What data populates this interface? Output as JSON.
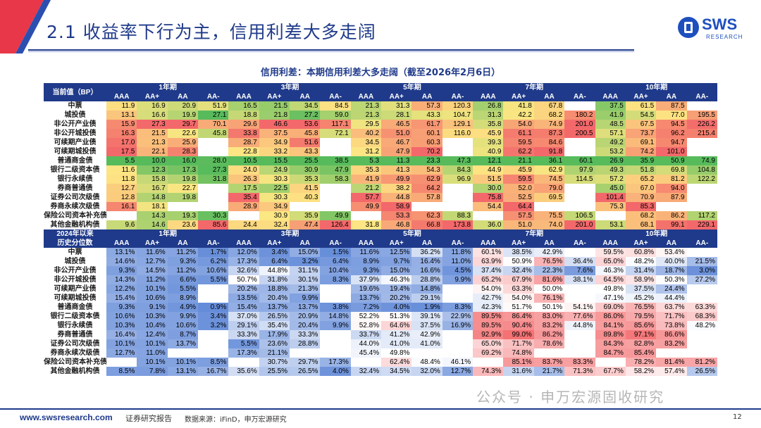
{
  "header": {
    "title": "2.1 收益率下行为主，信用利差大多走阔",
    "logo_text": "SWS",
    "logo_sub": "RESEARCH"
  },
  "subtitle": "信用利差：本期信用利差大多走阔（截至2026年2月6日）",
  "periods": [
    "1年期",
    "3年期",
    "5年期",
    "7年期",
    "10年期"
  ],
  "ratings": [
    "AAA",
    "AA+",
    "AA",
    "AA-"
  ],
  "top": {
    "corner": "当前值（BP）",
    "rows": [
      {
        "name": "中票",
        "v": [
          [
            "11.9",
            "16.9",
            "20.9",
            "51.9"
          ],
          [
            "16.5",
            "21.5",
            "34.5",
            "84.5"
          ],
          [
            "21.3",
            "31.3",
            "57.3",
            "120.3"
          ],
          [
            "26.8",
            "41.8",
            "67.8",
            ""
          ],
          [
            "37.5",
            "61.5",
            "87.5",
            ""
          ]
        ]
      },
      {
        "name": "城投债",
        "v": [
          [
            "13.1",
            "16.6",
            "19.9",
            "27.1"
          ],
          [
            "18.8",
            "21.8",
            "27.2",
            "59.0"
          ],
          [
            "21.3",
            "28.1",
            "43.3",
            "104.7"
          ],
          [
            "31.3",
            "42.2",
            "68.2",
            "180.2"
          ],
          [
            "41.9",
            "54.5",
            "77.0",
            "195.5"
          ]
        ]
      },
      {
        "name": "非公开产业债",
        "v": [
          [
            "15.9",
            "27.3",
            "29.7",
            "70.1"
          ],
          [
            "29.6",
            "46.6",
            "53.6",
            "117.1"
          ],
          [
            "29.5",
            "46.5",
            "61.7",
            "129.1"
          ],
          [
            "35.8",
            "54.0",
            "74.9",
            "201.0"
          ],
          [
            "48.5",
            "67.5",
            "94.5",
            "226.2"
          ]
        ]
      },
      {
        "name": "非公开城投债",
        "v": [
          [
            "16.3",
            "21.5",
            "22.6",
            "45.8"
          ],
          [
            "33.8",
            "37.5",
            "45.8",
            "72.1"
          ],
          [
            "40.2",
            "51.0",
            "60.1",
            "116.0"
          ],
          [
            "45.9",
            "61.1",
            "87.3",
            "200.5"
          ],
          [
            "57.1",
            "73.7",
            "96.2",
            "215.4"
          ]
        ]
      },
      {
        "name": "可续期产业债",
        "v": [
          [
            "17.0",
            "21.3",
            "25.9",
            ""
          ],
          [
            "28.7",
            "34.9",
            "51.6",
            ""
          ],
          [
            "34.5",
            "46.7",
            "60.3",
            ""
          ],
          [
            "39.3",
            "59.5",
            "84.6",
            ""
          ],
          [
            "49.2",
            "69.1",
            "94.7",
            ""
          ]
        ]
      },
      {
        "name": "可续期城投债",
        "v": [
          [
            "17.5",
            "22.1",
            "28.3",
            ""
          ],
          [
            "22.8",
            "33.2",
            "43.3",
            ""
          ],
          [
            "31.2",
            "47.9",
            "70.2",
            ""
          ],
          [
            "40.9",
            "62.2",
            "91.8",
            ""
          ],
          [
            "53.2",
            "74.2",
            "101.0",
            ""
          ]
        ]
      },
      {
        "name": "普通商金债",
        "v": [
          [
            "5.5",
            "10.0",
            "16.0",
            "28.0"
          ],
          [
            "10.5",
            "15.5",
            "25.5",
            "38.5"
          ],
          [
            "5.3",
            "11.3",
            "23.3",
            "47.3"
          ],
          [
            "12.1",
            "21.1",
            "36.1",
            "60.1"
          ],
          [
            "26.9",
            "35.9",
            "50.9",
            "74.9"
          ]
        ]
      },
      {
        "name": "银行二级资本债",
        "v": [
          [
            "11.6",
            "12.3",
            "17.3",
            "27.3"
          ],
          [
            "24.0",
            "24.9",
            "30.9",
            "47.9"
          ],
          [
            "35.3",
            "41.3",
            "54.3",
            "84.3"
          ],
          [
            "44.9",
            "45.9",
            "62.9",
            "97.9"
          ],
          [
            "49.3",
            "51.8",
            "69.8",
            "104.8"
          ]
        ]
      },
      {
        "name": "银行永续债",
        "v": [
          [
            "11.8",
            "15.8",
            "19.8",
            "31.8"
          ],
          [
            "26.3",
            "30.3",
            "35.3",
            "58.3"
          ],
          [
            "41.9",
            "49.9",
            "62.9",
            "96.9"
          ],
          [
            "51.5",
            "59.5",
            "74.5",
            "114.5"
          ],
          [
            "57.2",
            "65.2",
            "81.2",
            "122.2"
          ]
        ]
      },
      {
        "name": "券商普通债",
        "v": [
          [
            "12.7",
            "16.7",
            "22.7",
            ""
          ],
          [
            "17.5",
            "22.5",
            "41.5",
            ""
          ],
          [
            "21.2",
            "38.2",
            "64.2",
            ""
          ],
          [
            "30.0",
            "52.0",
            "79.0",
            ""
          ],
          [
            "45.0",
            "67.0",
            "94.0",
            ""
          ]
        ]
      },
      {
        "name": "证券公司次级债",
        "v": [
          [
            "12.8",
            "14.8",
            "19.8",
            ""
          ],
          [
            "35.4",
            "30.3",
            "40.3",
            ""
          ],
          [
            "57.7",
            "44.8",
            "57.8",
            ""
          ],
          [
            "75.8",
            "52.5",
            "69.5",
            ""
          ],
          [
            "101.4",
            "70.9",
            "87.9",
            ""
          ]
        ]
      },
      {
        "name": "券商永续次级债",
        "v": [
          [
            "16.1",
            "18.1",
            "",
            ""
          ],
          [
            "28.9",
            "34.9",
            "",
            ""
          ],
          [
            "49.9",
            "58.9",
            "",
            ""
          ],
          [
            "54.4",
            "64.4",
            "",
            ""
          ],
          [
            "75.3",
            "85.3",
            "",
            ""
          ]
        ]
      },
      {
        "name": "保险公司资本补充债",
        "v": [
          [
            "",
            "14.3",
            "19.3",
            "30.3"
          ],
          [
            "",
            "30.9",
            "35.9",
            "49.9"
          ],
          [
            "",
            "53.3",
            "62.3",
            "88.3"
          ],
          [
            "",
            "57.5",
            "75.5",
            "106.5"
          ],
          [
            "",
            "68.2",
            "86.2",
            "117.2"
          ]
        ]
      },
      {
        "name": "其他金融机构债",
        "v": [
          [
            "9.6",
            "14.6",
            "23.6",
            "85.6"
          ],
          [
            "24.4",
            "32.4",
            "47.4",
            "126.4"
          ],
          [
            "31.8",
            "46.8",
            "66.8",
            "173.8"
          ],
          [
            "36.0",
            "51.0",
            "74.0",
            "201.0"
          ],
          [
            "53.1",
            "68.1",
            "99.1",
            "229.1"
          ]
        ]
      }
    ]
  },
  "bottom": {
    "corner_line1": "2024年以来",
    "corner_line2": "历史分位数",
    "rows": [
      {
        "name": "中票",
        "v": [
          [
            "13.1%",
            "11.6%",
            "11.2%",
            "1.7%"
          ],
          [
            "12.0%",
            "3.4%",
            "15.0%",
            "1.5%"
          ],
          [
            "11.6%",
            "12.5%",
            "36.2%",
            "11.8%"
          ],
          [
            "60.1%",
            "38.5%",
            "42.9%",
            ""
          ],
          [
            "59.5%",
            "60.8%",
            "53.4%",
            ""
          ]
        ]
      },
      {
        "name": "城投债",
        "v": [
          [
            "14.6%",
            "12.7%",
            "9.3%",
            "6.2%"
          ],
          [
            "17.3%",
            "6.4%",
            "3.2%",
            "6.4%"
          ],
          [
            "8.9%",
            "9.7%",
            "16.4%",
            "11.0%"
          ],
          [
            "63.9%",
            "50.9%",
            "76.5%",
            "36.4%"
          ],
          [
            "65.0%",
            "48.2%",
            "40.0%",
            "21.5%"
          ]
        ]
      },
      {
        "name": "非公开产业债",
        "v": [
          [
            "9.3%",
            "14.5%",
            "11.2%",
            "10.6%"
          ],
          [
            "32.6%",
            "44.8%",
            "31.1%",
            "10.4%"
          ],
          [
            "9.3%",
            "15.0%",
            "16.6%",
            "4.5%"
          ],
          [
            "37.4%",
            "32.4%",
            "22.3%",
            "7.6%"
          ],
          [
            "46.3%",
            "31.4%",
            "18.7%",
            "3.0%"
          ]
        ]
      },
      {
        "name": "非公开城投债",
        "v": [
          [
            "14.3%",
            "11.2%",
            "6.6%",
            "5.5%"
          ],
          [
            "50.7%",
            "31.8%",
            "30.1%",
            "8.3%"
          ],
          [
            "37.9%",
            "46.3%",
            "28.8%",
            "9.9%"
          ],
          [
            "65.2%",
            "67.9%",
            "81.6%",
            "38.1%"
          ],
          [
            "64.5%",
            "58.9%",
            "50.3%",
            "27.2%"
          ]
        ]
      },
      {
        "name": "可续期产业债",
        "v": [
          [
            "12.2%",
            "10.1%",
            "5.5%",
            ""
          ],
          [
            "20.2%",
            "18.8%",
            "21.3%",
            ""
          ],
          [
            "19.6%",
            "19.4%",
            "14.8%",
            ""
          ],
          [
            "54.0%",
            "63.3%",
            "50.0%",
            ""
          ],
          [
            "49.8%",
            "37.5%",
            "24.4%",
            ""
          ]
        ]
      },
      {
        "name": "可续期城投债",
        "v": [
          [
            "15.4%",
            "10.6%",
            "8.9%",
            ""
          ],
          [
            "13.5%",
            "20.4%",
            "9.9%",
            ""
          ],
          [
            "13.7%",
            "20.2%",
            "29.1%",
            ""
          ],
          [
            "42.7%",
            "54.0%",
            "76.1%",
            ""
          ],
          [
            "47.1%",
            "45.2%",
            "44.4%",
            ""
          ]
        ]
      },
      {
        "name": "普通商金债",
        "v": [
          [
            "9.3%",
            "9.1%",
            "4.9%",
            "0.9%"
          ],
          [
            "15.4%",
            "13.7%",
            "13.7%",
            "3.8%"
          ],
          [
            "7.2%",
            "4.0%",
            "1.9%",
            "8.3%"
          ],
          [
            "42.3%",
            "51.7%",
            "50.1%",
            "54.1%"
          ],
          [
            "69.0%",
            "76.5%",
            "63.7%",
            "63.3%"
          ]
        ]
      },
      {
        "name": "银行二级资本债",
        "v": [
          [
            "10.6%",
            "10.3%",
            "9.9%",
            "3.4%"
          ],
          [
            "37.0%",
            "26.5%",
            "20.9%",
            "14.8%"
          ],
          [
            "52.2%",
            "51.3%",
            "39.1%",
            "22.9%"
          ],
          [
            "89.5%",
            "86.4%",
            "83.0%",
            "77.6%"
          ],
          [
            "86.0%",
            "79.5%",
            "71.7%",
            "68.3%"
          ]
        ]
      },
      {
        "name": "银行永续债",
        "v": [
          [
            "10.3%",
            "10.4%",
            "10.6%",
            "3.2%"
          ],
          [
            "29.1%",
            "35.4%",
            "20.4%",
            "9.9%"
          ],
          [
            "52.8%",
            "64.6%",
            "37.5%",
            "16.9%"
          ],
          [
            "89.5%",
            "90.4%",
            "83.2%",
            "44.8%"
          ],
          [
            "84.1%",
            "85.6%",
            "73.8%",
            "48.2%"
          ]
        ]
      },
      {
        "name": "券商普通债",
        "v": [
          [
            "16.4%",
            "12.4%",
            "8.7%",
            ""
          ],
          [
            "33.3%",
            "17.9%",
            "33.3%",
            ""
          ],
          [
            "33.7%",
            "41.2%",
            "42.9%",
            ""
          ],
          [
            "92.9%",
            "99.0%",
            "86.2%",
            ""
          ],
          [
            "89.8%",
            "97.1%",
            "86.6%",
            ""
          ]
        ]
      },
      {
        "name": "证券公司次级债",
        "v": [
          [
            "10.1%",
            "10.1%",
            "13.7%",
            ""
          ],
          [
            "5.5%",
            "23.6%",
            "28.8%",
            ""
          ],
          [
            "44.0%",
            "41.0%",
            "41.0%",
            ""
          ],
          [
            "65.0%",
            "71.7%",
            "78.6%",
            ""
          ],
          [
            "84.3%",
            "82.8%",
            "83.2%",
            ""
          ]
        ]
      },
      {
        "name": "券商永续次级债",
        "v": [
          [
            "12.7%",
            "11.0%",
            "",
            ""
          ],
          [
            "17.3%",
            "21.1%",
            "",
            ""
          ],
          [
            "45.4%",
            "49.8%",
            "",
            ""
          ],
          [
            "69.2%",
            "74.8%",
            "",
            ""
          ],
          [
            "84.7%",
            "85.4%",
            "",
            ""
          ]
        ]
      },
      {
        "name": "保险公司资本补充债",
        "v": [
          [
            "",
            "10.1%",
            "10.1%",
            "8.5%"
          ],
          [
            "",
            "30.7%",
            "29.7%",
            "17.3%"
          ],
          [
            "",
            "62.4%",
            "48.4%",
            "46.1%"
          ],
          [
            "",
            "85.1%",
            "83.7%",
            "83.3%"
          ],
          [
            "",
            "78.2%",
            "81.4%",
            "81.2%"
          ]
        ]
      },
      {
        "name": "其他金融机构债",
        "v": [
          [
            "8.5%",
            "7.8%",
            "13.1%",
            "16.7%"
          ],
          [
            "35.6%",
            "25.5%",
            "26.5%",
            "4.0%"
          ],
          [
            "32.4%",
            "34.5%",
            "32.0%",
            "12.7%"
          ],
          [
            "74.3%",
            "31.6%",
            "21.7%",
            "71.3%"
          ],
          [
            "67.7%",
            "58.2%",
            "57.4%",
            "26.5%"
          ]
        ]
      }
    ]
  },
  "watermark": "公众号 · 申万宏源固收研究",
  "footer": {
    "url": "www.swsresearch.com",
    "report": "证券研究报告",
    "source": "数据来源：iFinD，申万宏源研究",
    "page": "12"
  },
  "colors": {
    "accent": "#1f3a8a",
    "green": "#57bb5c",
    "yellow": "#fde783",
    "red": "#f3686a",
    "blue": "#5a84d6"
  }
}
